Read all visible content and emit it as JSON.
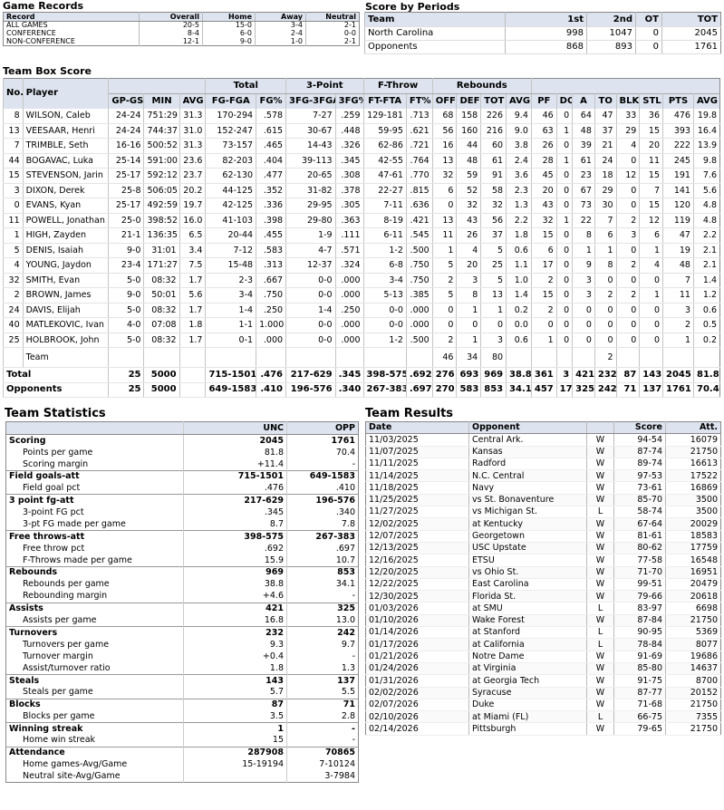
{
  "game_records": {
    "title": "Game Records",
    "headers": [
      "Record",
      "Overall",
      "Home",
      "Away",
      "Neutral"
    ],
    "rows": [
      [
        "ALL GAMES",
        "20-5",
        "15-0",
        "3-4",
        "2-1"
      ],
      [
        "CONFERENCE",
        "8-4",
        "6-0",
        "2-4",
        "0-0"
      ],
      [
        "NON-CONFERENCE",
        "12-1",
        "9-0",
        "1-0",
        "2-1"
      ]
    ]
  },
  "score_by_periods": {
    "title": "Score by Periods",
    "headers": [
      "Team",
      "1st",
      "2nd",
      "OT",
      "TOT"
    ],
    "rows": [
      [
        "North Carolina",
        "998",
        "1047",
        "0",
        "2045"
      ],
      [
        "Opponents",
        "868",
        "893",
        "0",
        "1761"
      ]
    ]
  },
  "box_score": {
    "title": "Team Box Score",
    "group_headers": {
      "total": "Total",
      "three_point": "3-Point",
      "free_throw": "F-Throw",
      "rebounds": "Rebounds"
    },
    "headers": [
      "No.",
      "Player",
      "GP-GS",
      "MIN",
      "AVG",
      "FG-FGA",
      "FG%",
      "3FG-3FGA",
      "3FG%",
      "FT-FTA",
      "FT%",
      "OFF",
      "DEF",
      "TOT",
      "AVG",
      "PF",
      "DQ",
      "A",
      "TO",
      "BLK",
      "STL",
      "PTS",
      "AVG"
    ],
    "players": [
      [
        "8",
        "WILSON, Caleb",
        "24-24",
        "751:29",
        "31.3",
        "170-294",
        ".578",
        "7-27",
        ".259",
        "129-181",
        ".713",
        "68",
        "158",
        "226",
        "9.4",
        "46",
        "0",
        "64",
        "47",
        "33",
        "36",
        "476",
        "19.8"
      ],
      [
        "13",
        "VEESAAR, Henri",
        "24-24",
        "744:37",
        "31.0",
        "152-247",
        ".615",
        "30-67",
        ".448",
        "59-95",
        ".621",
        "56",
        "160",
        "216",
        "9.0",
        "63",
        "1",
        "48",
        "37",
        "29",
        "15",
        "393",
        "16.4"
      ],
      [
        "7",
        "TRIMBLE, Seth",
        "16-16",
        "500:52",
        "31.3",
        "73-157",
        ".465",
        "14-43",
        ".326",
        "62-86",
        ".721",
        "16",
        "44",
        "60",
        "3.8",
        "26",
        "0",
        "39",
        "21",
        "4",
        "20",
        "222",
        "13.9"
      ],
      [
        "44",
        "BOGAVAC, Luka",
        "25-14",
        "591:00",
        "23.6",
        "82-203",
        ".404",
        "39-113",
        ".345",
        "42-55",
        ".764",
        "13",
        "48",
        "61",
        "2.4",
        "28",
        "1",
        "61",
        "24",
        "0",
        "11",
        "245",
        "9.8"
      ],
      [
        "15",
        "STEVENSON, Jarin",
        "25-17",
        "592:12",
        "23.7",
        "62-130",
        ".477",
        "20-65",
        ".308",
        "47-61",
        ".770",
        "32",
        "59",
        "91",
        "3.6",
        "45",
        "0",
        "23",
        "18",
        "12",
        "15",
        "191",
        "7.6"
      ],
      [
        "3",
        "DIXON, Derek",
        "25-8",
        "506:05",
        "20.2",
        "44-125",
        ".352",
        "31-82",
        ".378",
        "22-27",
        ".815",
        "6",
        "52",
        "58",
        "2.3",
        "20",
        "0",
        "67",
        "29",
        "0",
        "7",
        "141",
        "5.6"
      ],
      [
        "0",
        "EVANS, Kyan",
        "25-17",
        "492:59",
        "19.7",
        "42-125",
        ".336",
        "29-95",
        ".305",
        "7-11",
        ".636",
        "0",
        "32",
        "32",
        "1.3",
        "43",
        "0",
        "73",
        "30",
        "0",
        "15",
        "120",
        "4.8"
      ],
      [
        "11",
        "POWELL, Jonathan",
        "25-0",
        "398:52",
        "16.0",
        "41-103",
        ".398",
        "29-80",
        ".363",
        "8-19",
        ".421",
        "13",
        "43",
        "56",
        "2.2",
        "32",
        "1",
        "22",
        "7",
        "2",
        "12",
        "119",
        "4.8"
      ],
      [
        "1",
        "HIGH, Zayden",
        "21-1",
        "136:35",
        "6.5",
        "20-44",
        ".455",
        "1-9",
        ".111",
        "6-11",
        ".545",
        "11",
        "26",
        "37",
        "1.8",
        "15",
        "0",
        "8",
        "6",
        "3",
        "6",
        "47",
        "2.2"
      ],
      [
        "5",
        "DENIS, Isaiah",
        "9-0",
        "31:01",
        "3.4",
        "7-12",
        ".583",
        "4-7",
        ".571",
        "1-2",
        ".500",
        "1",
        "4",
        "5",
        "0.6",
        "6",
        "0",
        "1",
        "1",
        "0",
        "1",
        "19",
        "2.1"
      ],
      [
        "4",
        "YOUNG, Jaydon",
        "23-4",
        "171:27",
        "7.5",
        "15-48",
        ".313",
        "12-37",
        ".324",
        "6-8",
        ".750",
        "5",
        "20",
        "25",
        "1.1",
        "17",
        "0",
        "9",
        "8",
        "2",
        "4",
        "48",
        "2.1"
      ],
      [
        "32",
        "SMITH, Evan",
        "5-0",
        "08:32",
        "1.7",
        "2-3",
        ".667",
        "0-0",
        ".000",
        "3-4",
        ".750",
        "2",
        "3",
        "5",
        "1.0",
        "2",
        "0",
        "3",
        "0",
        "0",
        "0",
        "7",
        "1.4"
      ],
      [
        "2",
        "BROWN, James",
        "9-0",
        "50:01",
        "5.6",
        "3-4",
        ".750",
        "0-0",
        ".000",
        "5-13",
        ".385",
        "5",
        "8",
        "13",
        "1.4",
        "15",
        "0",
        "3",
        "2",
        "2",
        "1",
        "11",
        "1.2"
      ],
      [
        "24",
        "DAVIS, Elijah",
        "5-0",
        "08:32",
        "1.7",
        "1-4",
        ".250",
        "1-4",
        ".250",
        "0-0",
        ".000",
        "0",
        "1",
        "1",
        "0.2",
        "2",
        "0",
        "0",
        "0",
        "0",
        "0",
        "3",
        "0.6"
      ],
      [
        "40",
        "MATLEKOVIC, Ivan",
        "4-0",
        "07:08",
        "1.8",
        "1-1",
        "1.000",
        "0-0",
        ".000",
        "0-0",
        ".000",
        "0",
        "0",
        "0",
        "0.0",
        "0",
        "0",
        "0",
        "0",
        "0",
        "0",
        "2",
        "0.5"
      ],
      [
        "25",
        "HOLBROOK, John",
        "5-0",
        "08:32",
        "1.7",
        "0-1",
        ".000",
        "0-0",
        ".000",
        "1-2",
        ".500",
        "2",
        "1",
        "3",
        "0.6",
        "1",
        "0",
        "0",
        "0",
        "0",
        "0",
        "1",
        "0.2"
      ]
    ],
    "team_row": {
      "label": "Team",
      "off": "46",
      "def": "34",
      "tot": "80",
      "to": "2"
    },
    "totals": [
      [
        "Total",
        "25",
        "5000",
        "",
        "715-1501",
        ".476",
        "217-629",
        ".345",
        "398-575",
        ".692",
        "276",
        "693",
        "969",
        "38.8",
        "361",
        "3",
        "421",
        "232",
        "87",
        "143",
        "2045",
        "81.8"
      ],
      [
        "Opponents",
        "25",
        "5000",
        "",
        "649-1583",
        ".410",
        "196-576",
        ".340",
        "267-383",
        ".697",
        "270",
        "583",
        "853",
        "34.1",
        "457",
        "17",
        "325",
        "242",
        "71",
        "137",
        "1761",
        "70.4"
      ]
    ]
  },
  "team_statistics": {
    "title": "Team Statistics",
    "headers": [
      "",
      "UNC",
      "OPP"
    ],
    "rows": [
      [
        "cat",
        "Scoring",
        "2045",
        "1761"
      ],
      [
        "sub",
        "Points per game",
        "81.8",
        "70.4"
      ],
      [
        "sub",
        "Scoring margin",
        "+11.4",
        "-"
      ],
      [
        "cat",
        "Field goals-att",
        "715-1501",
        "649-1583"
      ],
      [
        "sub",
        "Field goal pct",
        ".476",
        ".410"
      ],
      [
        "cat",
        "3 point fg-att",
        "217-629",
        "196-576"
      ],
      [
        "sub",
        "3-point FG pct",
        ".345",
        ".340"
      ],
      [
        "sub",
        "3-pt FG made per game",
        "8.7",
        "7.8"
      ],
      [
        "cat",
        "Free throws-att",
        "398-575",
        "267-383"
      ],
      [
        "sub",
        "Free throw pct",
        ".692",
        ".697"
      ],
      [
        "sub",
        "F-Throws made per game",
        "15.9",
        "10.7"
      ],
      [
        "cat",
        "Rebounds",
        "969",
        "853"
      ],
      [
        "sub",
        "Rebounds per game",
        "38.8",
        "34.1"
      ],
      [
        "sub",
        "Rebounding margin",
        "+4.6",
        "-"
      ],
      [
        "cat",
        "Assists",
        "421",
        "325"
      ],
      [
        "sub",
        "Assists per game",
        "16.8",
        "13.0"
      ],
      [
        "cat",
        "Turnovers",
        "232",
        "242"
      ],
      [
        "sub",
        "Turnovers per game",
        "9.3",
        "9.7"
      ],
      [
        "sub",
        "Turnover margin",
        "+0.4",
        "-"
      ],
      [
        "sub",
        "Assist/turnover ratio",
        "1.8",
        "1.3"
      ],
      [
        "cat",
        "Steals",
        "143",
        "137"
      ],
      [
        "sub",
        "Steals per game",
        "5.7",
        "5.5"
      ],
      [
        "cat",
        "Blocks",
        "87",
        "71"
      ],
      [
        "sub",
        "Blocks per game",
        "3.5",
        "2.8"
      ],
      [
        "cat",
        "Winning streak",
        "1",
        "-"
      ],
      [
        "sub",
        "Home win streak",
        "15",
        "-"
      ],
      [
        "cat",
        "Attendance",
        "287908",
        "70865"
      ],
      [
        "sub",
        "Home games-Avg/Game",
        "15-19194",
        "7-10124"
      ],
      [
        "sub",
        "Neutral site-Avg/Game",
        "",
        "3-7984"
      ]
    ]
  },
  "team_results": {
    "title": "Team Results",
    "headers": [
      "Date",
      "Opponent",
      "",
      "Score",
      "Att."
    ],
    "rows": [
      [
        "11/03/2025",
        "Central Ark.",
        "W",
        "94-54",
        "16079"
      ],
      [
        "11/07/2025",
        "Kansas",
        "W",
        "87-74",
        "21750"
      ],
      [
        "11/11/2025",
        "Radford",
        "W",
        "89-74",
        "16613"
      ],
      [
        "11/14/2025",
        "N.C. Central",
        "W",
        "97-53",
        "17522"
      ],
      [
        "11/18/2025",
        "Navy",
        "W",
        "73-61",
        "16869"
      ],
      [
        "11/25/2025",
        "vs St. Bonaventure",
        "W",
        "85-70",
        "3500"
      ],
      [
        "11/27/2025",
        "vs Michigan St.",
        "L",
        "58-74",
        "3500"
      ],
      [
        "12/02/2025",
        "at Kentucky",
        "W",
        "67-64",
        "20029"
      ],
      [
        "12/07/2025",
        "Georgetown",
        "W",
        "81-61",
        "18583"
      ],
      [
        "12/13/2025",
        "USC Upstate",
        "W",
        "80-62",
        "17759"
      ],
      [
        "12/16/2025",
        "ETSU",
        "W",
        "77-58",
        "16548"
      ],
      [
        "12/20/2025",
        "vs Ohio St.",
        "W",
        "71-70",
        "16951"
      ],
      [
        "12/22/2025",
        "East Carolina",
        "W",
        "99-51",
        "20479"
      ],
      [
        "12/30/2025",
        "Florida St.",
        "W",
        "79-66",
        "20618"
      ],
      [
        "01/03/2026",
        "at SMU",
        "L",
        "83-97",
        "6698"
      ],
      [
        "01/10/2026",
        "Wake Forest",
        "W",
        "87-84",
        "21750"
      ],
      [
        "01/14/2026",
        "at Stanford",
        "L",
        "90-95",
        "5369"
      ],
      [
        "01/17/2026",
        "at California",
        "L",
        "78-84",
        "8077"
      ],
      [
        "01/21/2026",
        "Notre Dame",
        "W",
        "91-69",
        "19686"
      ],
      [
        "01/24/2026",
        "at Virginia",
        "W",
        "85-80",
        "14637"
      ],
      [
        "01/31/2026",
        "at Georgia Tech",
        "W",
        "91-75",
        "8700"
      ],
      [
        "02/02/2026",
        "Syracuse",
        "W",
        "87-77",
        "20152"
      ],
      [
        "02/07/2026",
        "Duke",
        "W",
        "71-68",
        "21750"
      ],
      [
        "02/10/2026",
        "at Miami (FL)",
        "L",
        "66-75",
        "7355"
      ],
      [
        "02/14/2026",
        "Pittsburgh",
        "W",
        "79-65",
        "21750"
      ]
    ]
  }
}
